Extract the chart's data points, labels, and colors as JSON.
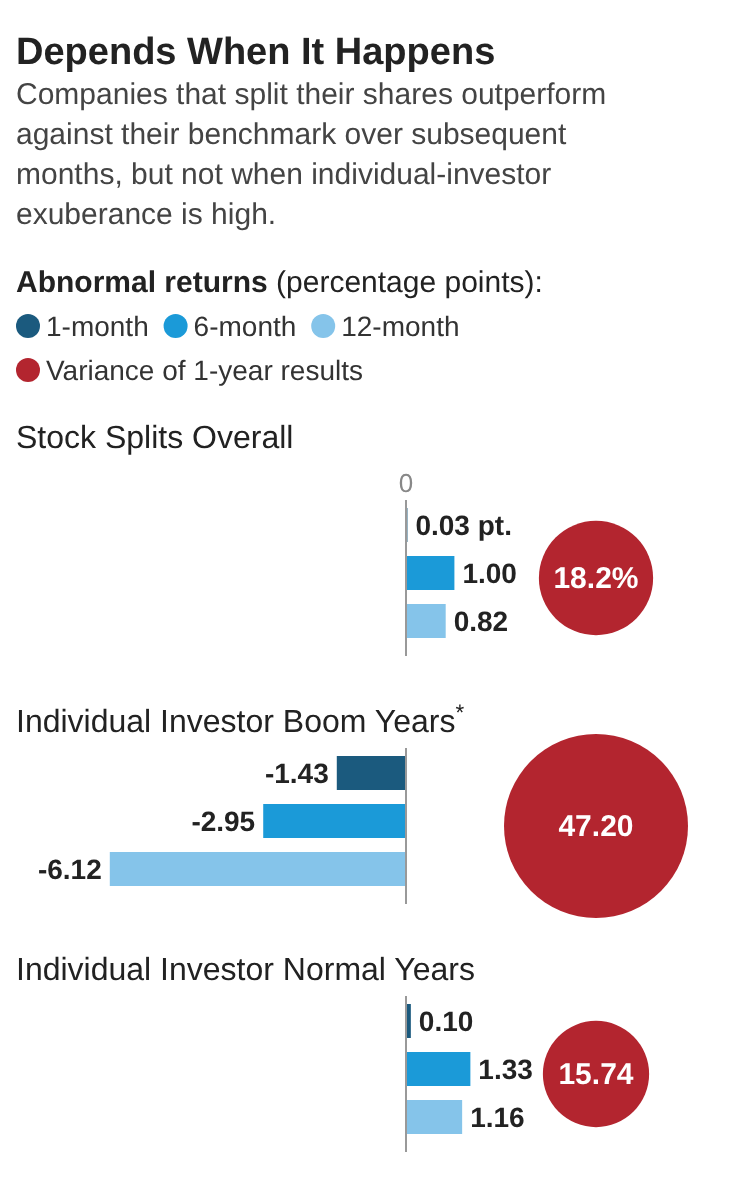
{
  "chart_data": [
    {
      "type": "bar",
      "orientation": "horizontal",
      "title": "Depends When It Happens",
      "subtitle": "Companies that split their shares outperform against their benchmark over subsequent months, but not when individual-investor exuberance is high.",
      "legend_title": "Abnormal returns (percentage points):",
      "legend": "top",
      "categories": [
        "Stock Splits Overall",
        "Individual Investor Boom Years$^{*}$",
        "Individual Investor Normal Years"
      ],
      "ref_lines": [
        {
          "axis": "x",
          "value": 0,
          "label": "0"
        }
      ],
      "series": [
        {
          "name": "1-month",
          "color": "#1b5a7e",
          "values": [
            0.03,
            -1.43,
            0.1
          ],
          "value_labels": [
            "0.03 pt.",
            "-1.43",
            "0.10"
          ]
        },
        {
          "name": "6-month",
          "color": "#1b9ad8",
          "values": [
            1.0,
            -2.95,
            1.33
          ],
          "value_labels": [
            "1.00",
            "-2.95",
            "1.33"
          ]
        },
        {
          "name": "12-month",
          "color": "#85c4ea",
          "values": [
            0.82,
            -6.12,
            1.16
          ],
          "value_labels": [
            "0.82",
            "-6.12",
            "1.16"
          ]
        }
      ]
    },
    {
      "type": "other",
      "legend": "top",
      "categories": [
        null,
        null,
        null
      ],
      "series": [
        {
          "name": "Variance of 1-year results",
          "color": "#b3252f",
          "values": [
            18.2,
            47.2,
            15.74
          ],
          "value_labels": [
            "18.2%",
            "47.20",
            "15.74"
          ]
        }
      ]
    }
  ]
}
